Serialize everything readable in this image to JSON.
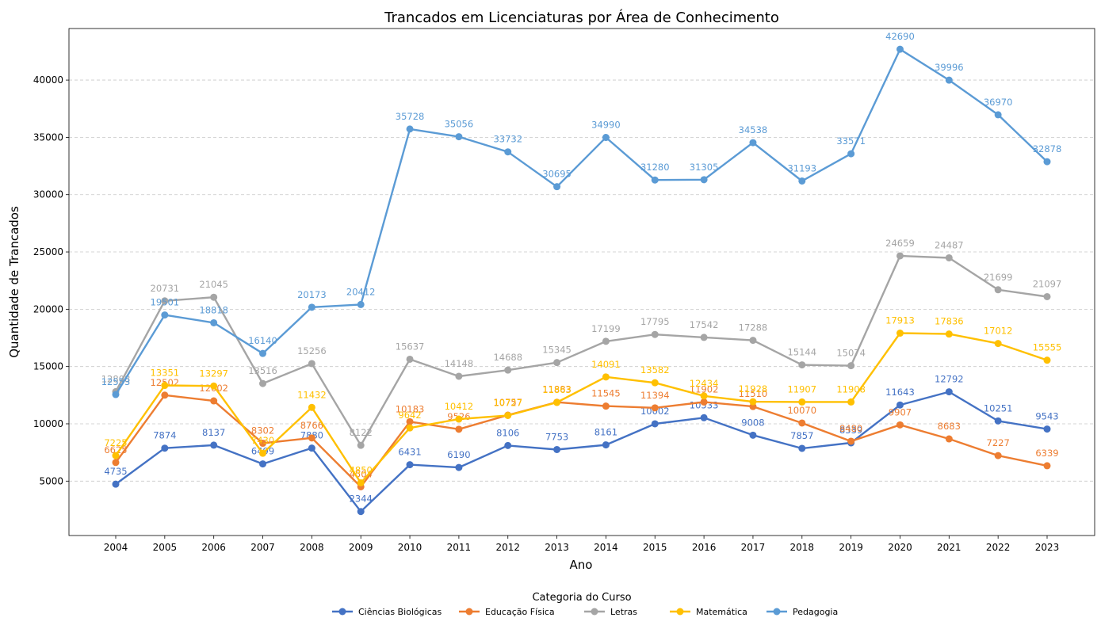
{
  "chart_data": {
    "type": "line",
    "title": "Trancados em Licenciaturas por Área de Conhecimento",
    "xlabel": "Ano",
    "ylabel": "Quantidade de Trancados",
    "x": [
      2004,
      2005,
      2006,
      2007,
      2008,
      2009,
      2010,
      2011,
      2012,
      2013,
      2014,
      2015,
      2016,
      2017,
      2018,
      2019,
      2020,
      2021,
      2022,
      2023
    ],
    "ylim": [
      250,
      44500
    ],
    "yticks": [
      5000,
      10000,
      15000,
      20000,
      25000,
      30000,
      35000,
      40000
    ],
    "grid": "horizontal dashed",
    "legend_title": "Categoria do Curso",
    "legend_position": "bottom-center",
    "series": [
      {
        "name": "Ciências Biológicas",
        "color": "#4472c4",
        "values": [
          4735,
          7874,
          8137,
          6499,
          7880,
          2344,
          6431,
          6190,
          8106,
          7753,
          8161,
          10002,
          10533,
          9008,
          7857,
          8339,
          11643,
          12792,
          10251,
          9543
        ]
      },
      {
        "name": "Educação Física",
        "color": "#ed7d31",
        "values": [
          6625,
          12502,
          12002,
          8302,
          8766,
          4504,
          10183,
          9526,
          10757,
          11883,
          11545,
          11394,
          11902,
          11510,
          10070,
          8480,
          9907,
          8683,
          7227,
          6339
        ]
      },
      {
        "name": "Letras",
        "color": "#a5a5a5",
        "values": [
          12808,
          20731,
          21045,
          13516,
          15256,
          8122,
          15637,
          14148,
          14688,
          15345,
          17199,
          17795,
          17542,
          17288,
          15144,
          15074,
          24659,
          24487,
          21699,
          21097
        ]
      },
      {
        "name": "Matemática",
        "color": "#ffc000",
        "values": [
          7225,
          13351,
          13297,
          7430,
          11432,
          4850,
          9642,
          10412,
          10727,
          11863,
          14091,
          13582,
          12434,
          11928,
          11907,
          11908,
          17913,
          17836,
          17012,
          15555
        ]
      },
      {
        "name": "Pedagogia",
        "color": "#5b9bd5",
        "values": [
          12553,
          19501,
          18818,
          16140,
          20173,
          20412,
          35728,
          35056,
          33732,
          30695,
          34990,
          31280,
          31305,
          34538,
          31193,
          33571,
          42690,
          39996,
          36970,
          32878
        ]
      }
    ]
  }
}
